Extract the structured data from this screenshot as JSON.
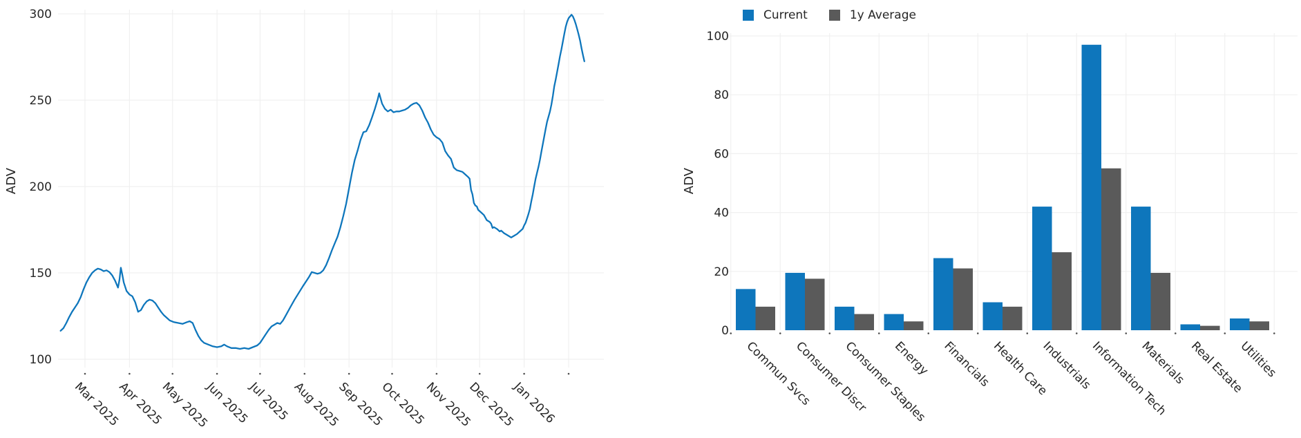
{
  "colors": {
    "accent_blue": "#0e76bc",
    "series_gray": "#5a5a5a",
    "tick_text": "#262626",
    "gridline": "#f0f0f0",
    "tick_mark": "#4d4d4d"
  },
  "legend": {
    "items": [
      {
        "label": "Current",
        "color": "#0e76bc"
      },
      {
        "label": "1y Average",
        "color": "#5a5a5a"
      }
    ]
  },
  "chart_data": [
    {
      "type": "line",
      "title": "",
      "xlabel": "",
      "ylabel": "ADV",
      "grid": true,
      "legend_position": "none",
      "ylim": [
        95,
        302
      ],
      "yticks": [
        100,
        150,
        200,
        250,
        300
      ],
      "xticks": [
        {
          "date": "2025-03-01",
          "label": "Mar 2025"
        },
        {
          "date": "2025-04-01",
          "label": "Apr 2025"
        },
        {
          "date": "2025-05-01",
          "label": "May 2025"
        },
        {
          "date": "2025-06-01",
          "label": "Jun 2025"
        },
        {
          "date": "2025-07-01",
          "label": "Jul 2025"
        },
        {
          "date": "2025-08-01",
          "label": "Aug 2025"
        },
        {
          "date": "2025-09-01",
          "label": "Sep 2025"
        },
        {
          "date": "2025-10-01",
          "label": "Oct 2025"
        },
        {
          "date": "2025-11-01",
          "label": "Nov 2025"
        },
        {
          "date": "2025-12-01",
          "label": "Dec 2025"
        },
        {
          "date": "2026-01-01",
          "label": "Jan 2026"
        },
        {
          "date": "2026-02-01",
          "label": ""
        }
      ],
      "series": [
        {
          "name": "ADV",
          "color": "#0e76bc",
          "points": [
            [
              "2025-02-12",
              116.5
            ],
            [
              "2025-02-14",
              118
            ],
            [
              "2025-02-16",
              121
            ],
            [
              "2025-02-18",
              124.5
            ],
            [
              "2025-02-20",
              127.5
            ],
            [
              "2025-02-22",
              130
            ],
            [
              "2025-02-24",
              132.5
            ],
            [
              "2025-02-26",
              136
            ],
            [
              "2025-02-28",
              140.5
            ],
            [
              "2025-03-02",
              144.5
            ],
            [
              "2025-03-04",
              147.5
            ],
            [
              "2025-03-06",
              150
            ],
            [
              "2025-03-08",
              151.5
            ],
            [
              "2025-03-10",
              152.5
            ],
            [
              "2025-03-12",
              152
            ],
            [
              "2025-03-14",
              151
            ],
            [
              "2025-03-16",
              151.5
            ],
            [
              "2025-03-18",
              150.5
            ],
            [
              "2025-03-20",
              148.5
            ],
            [
              "2025-03-22",
              145.5
            ],
            [
              "2025-03-24",
              141.5
            ],
            [
              "2025-03-25",
              146
            ],
            [
              "2025-03-26",
              153
            ],
            [
              "2025-03-27",
              149
            ],
            [
              "2025-03-28",
              144.5
            ],
            [
              "2025-03-30",
              139.5
            ],
            [
              "2025-04-01",
              137.5
            ],
            [
              "2025-04-03",
              136.5
            ],
            [
              "2025-04-05",
              133
            ],
            [
              "2025-04-07",
              127.5
            ],
            [
              "2025-04-09",
              128.5
            ],
            [
              "2025-04-11",
              131.5
            ],
            [
              "2025-04-13",
              133.5
            ],
            [
              "2025-04-15",
              134.5
            ],
            [
              "2025-04-17",
              134
            ],
            [
              "2025-04-19",
              132.5
            ],
            [
              "2025-04-21",
              130
            ],
            [
              "2025-04-23",
              127.5
            ],
            [
              "2025-04-25",
              125.5
            ],
            [
              "2025-04-27",
              124
            ],
            [
              "2025-04-29",
              122.5
            ],
            [
              "2025-05-02",
              121.5
            ],
            [
              "2025-05-05",
              121
            ],
            [
              "2025-05-08",
              120.5
            ],
            [
              "2025-05-11",
              121.5
            ],
            [
              "2025-05-13",
              122
            ],
            [
              "2025-05-15",
              121
            ],
            [
              "2025-05-17",
              117
            ],
            [
              "2025-05-19",
              113.5
            ],
            [
              "2025-05-21",
              111
            ],
            [
              "2025-05-23",
              109.5
            ],
            [
              "2025-05-26",
              108.5
            ],
            [
              "2025-05-29",
              107.5
            ],
            [
              "2025-06-01",
              107
            ],
            [
              "2025-06-04",
              107.5
            ],
            [
              "2025-06-06",
              108.5
            ],
            [
              "2025-06-08",
              107.5
            ],
            [
              "2025-06-11",
              106.5
            ],
            [
              "2025-06-14",
              106.5
            ],
            [
              "2025-06-17",
              106
            ],
            [
              "2025-06-20",
              106.5
            ],
            [
              "2025-06-23",
              106
            ],
            [
              "2025-06-26",
              107
            ],
            [
              "2025-06-29",
              108
            ],
            [
              "2025-07-01",
              109.5
            ],
            [
              "2025-07-03",
              112
            ],
            [
              "2025-07-05",
              114.5
            ],
            [
              "2025-07-07",
              117
            ],
            [
              "2025-07-09",
              119
            ],
            [
              "2025-07-11",
              120
            ],
            [
              "2025-07-13",
              121
            ],
            [
              "2025-07-15",
              120.5
            ],
            [
              "2025-07-17",
              122.5
            ],
            [
              "2025-07-19",
              125.5
            ],
            [
              "2025-07-22",
              130
            ],
            [
              "2025-07-25",
              134.5
            ],
            [
              "2025-07-28",
              138.5
            ],
            [
              "2025-07-31",
              142.5
            ],
            [
              "2025-08-02",
              145
            ],
            [
              "2025-08-04",
              147.5
            ],
            [
              "2025-08-06",
              150.5
            ],
            [
              "2025-08-08",
              150
            ],
            [
              "2025-08-10",
              149.5
            ],
            [
              "2025-08-12",
              150
            ],
            [
              "2025-08-14",
              151.5
            ],
            [
              "2025-08-16",
              154.5
            ],
            [
              "2025-08-18",
              158.5
            ],
            [
              "2025-08-20",
              163
            ],
            [
              "2025-08-22",
              167
            ],
            [
              "2025-08-24",
              171
            ],
            [
              "2025-08-26",
              176.5
            ],
            [
              "2025-08-28",
              183
            ],
            [
              "2025-08-30",
              190
            ],
            [
              "2025-09-01",
              199
            ],
            [
              "2025-09-03",
              208
            ],
            [
              "2025-09-05",
              215.5
            ],
            [
              "2025-09-07",
              221
            ],
            [
              "2025-09-09",
              227
            ],
            [
              "2025-09-11",
              231.5
            ],
            [
              "2025-09-13",
              232
            ],
            [
              "2025-09-15",
              235.5
            ],
            [
              "2025-09-17",
              240
            ],
            [
              "2025-09-19",
              245
            ],
            [
              "2025-09-21",
              250.5
            ],
            [
              "2025-09-22",
              254
            ],
            [
              "2025-09-24",
              248
            ],
            [
              "2025-09-26",
              245
            ],
            [
              "2025-09-28",
              243.5
            ],
            [
              "2025-09-30",
              244.5
            ],
            [
              "2025-10-02",
              243
            ],
            [
              "2025-10-04",
              243.5
            ],
            [
              "2025-10-06",
              243.5
            ],
            [
              "2025-10-08",
              244
            ],
            [
              "2025-10-10",
              244.5
            ],
            [
              "2025-10-12",
              245.5
            ],
            [
              "2025-10-14",
              247
            ],
            [
              "2025-10-16",
              248
            ],
            [
              "2025-10-18",
              248.5
            ],
            [
              "2025-10-20",
              247
            ],
            [
              "2025-10-22",
              244
            ],
            [
              "2025-10-24",
              240
            ],
            [
              "2025-10-26",
              237
            ],
            [
              "2025-10-28",
              233
            ],
            [
              "2025-10-30",
              230
            ],
            [
              "2025-11-01",
              228.5
            ],
            [
              "2025-11-03",
              227.5
            ],
            [
              "2025-11-05",
              225.5
            ],
            [
              "2025-11-07",
              220.5
            ],
            [
              "2025-11-09",
              218
            ],
            [
              "2025-11-11",
              216
            ],
            [
              "2025-11-13",
              211
            ],
            [
              "2025-11-15",
              209.5
            ],
            [
              "2025-11-17",
              209
            ],
            [
              "2025-11-19",
              208.5
            ],
            [
              "2025-11-21",
              207
            ],
            [
              "2025-11-23",
              205.5
            ],
            [
              "2025-11-24",
              204.5
            ],
            [
              "2025-11-25",
              198
            ],
            [
              "2025-11-26",
              195.5
            ],
            [
              "2025-11-27",
              190.5
            ],
            [
              "2025-11-28",
              189
            ],
            [
              "2025-11-29",
              188.5
            ],
            [
              "2025-11-30",
              186.5
            ],
            [
              "2025-12-02",
              185
            ],
            [
              "2025-12-04",
              183.5
            ],
            [
              "2025-12-06",
              180.5
            ],
            [
              "2025-12-08",
              179.5
            ],
            [
              "2025-12-09",
              178.5
            ],
            [
              "2025-12-10",
              176
            ],
            [
              "2025-12-11",
              176.5
            ],
            [
              "2025-12-13",
              175.5
            ],
            [
              "2025-12-15",
              174
            ],
            [
              "2025-12-16",
              174.5
            ],
            [
              "2025-12-18",
              173
            ],
            [
              "2025-12-20",
              172
            ],
            [
              "2025-12-22",
              171
            ],
            [
              "2025-12-23",
              170.5
            ],
            [
              "2025-12-25",
              171.5
            ],
            [
              "2025-12-27",
              172.5
            ],
            [
              "2025-12-29",
              174
            ],
            [
              "2025-12-31",
              175.5
            ],
            [
              "2026-01-01",
              177.5
            ],
            [
              "2026-01-02",
              179
            ],
            [
              "2026-01-03",
              181.5
            ],
            [
              "2026-01-04",
              184
            ],
            [
              "2026-01-05",
              187
            ],
            [
              "2026-01-06",
              191.5
            ],
            [
              "2026-01-07",
              195.5
            ],
            [
              "2026-01-08",
              200
            ],
            [
              "2026-01-09",
              204.5
            ],
            [
              "2026-01-10",
              208
            ],
            [
              "2026-01-11",
              211.5
            ],
            [
              "2026-01-12",
              215.5
            ],
            [
              "2026-01-13",
              220
            ],
            [
              "2026-01-14",
              224.5
            ],
            [
              "2026-01-15",
              229
            ],
            [
              "2026-01-16",
              233.5
            ],
            [
              "2026-01-17",
              237.5
            ],
            [
              "2026-01-18",
              240.5
            ],
            [
              "2026-01-19",
              243.5
            ],
            [
              "2026-01-20",
              247.5
            ],
            [
              "2026-01-21",
              252.5
            ],
            [
              "2026-01-22",
              258
            ],
            [
              "2026-01-23",
              262
            ],
            [
              "2026-01-24",
              266.5
            ],
            [
              "2026-01-25",
              271
            ],
            [
              "2026-01-26",
              275.5
            ],
            [
              "2026-01-27",
              279.5
            ],
            [
              "2026-01-28",
              284
            ],
            [
              "2026-01-29",
              288.5
            ],
            [
              "2026-01-30",
              292.5
            ],
            [
              "2026-01-31",
              295.5
            ],
            [
              "2026-02-01",
              297.5
            ],
            [
              "2026-02-02",
              298.5
            ],
            [
              "2026-02-03",
              299.5
            ],
            [
              "2026-02-04",
              298.5
            ],
            [
              "2026-02-05",
              296.5
            ],
            [
              "2026-02-06",
              294
            ],
            [
              "2026-02-07",
              291
            ],
            [
              "2026-02-08",
              288
            ],
            [
              "2026-02-09",
              284.5
            ],
            [
              "2026-02-10",
              280
            ],
            [
              "2026-02-11",
              276
            ],
            [
              "2026-02-12",
              272.5
            ]
          ]
        }
      ]
    },
    {
      "type": "bar",
      "title": "",
      "xlabel": "",
      "ylabel": "ADV",
      "grid": true,
      "legend_position": "top",
      "ylim": [
        0,
        100
      ],
      "yticks": [
        0,
        20,
        40,
        60,
        80,
        100
      ],
      "categories": [
        "Commun Svcs",
        "Consumer Discr",
        "Consumer Staples",
        "Energy",
        "Financials",
        "Health Care",
        "Industrials",
        "Information Tech",
        "Materials",
        "Real Estate",
        "Utilities"
      ],
      "series": [
        {
          "name": "Current",
          "color": "#0e76bc",
          "values": [
            14,
            19.5,
            8,
            5.5,
            24.5,
            9.5,
            42,
            97,
            42,
            2,
            4
          ]
        },
        {
          "name": "1y Average",
          "color": "#5a5a5a",
          "values": [
            8,
            17.5,
            5.5,
            3,
            21,
            8,
            26.5,
            55,
            19.5,
            1.5,
            3
          ]
        }
      ]
    }
  ]
}
